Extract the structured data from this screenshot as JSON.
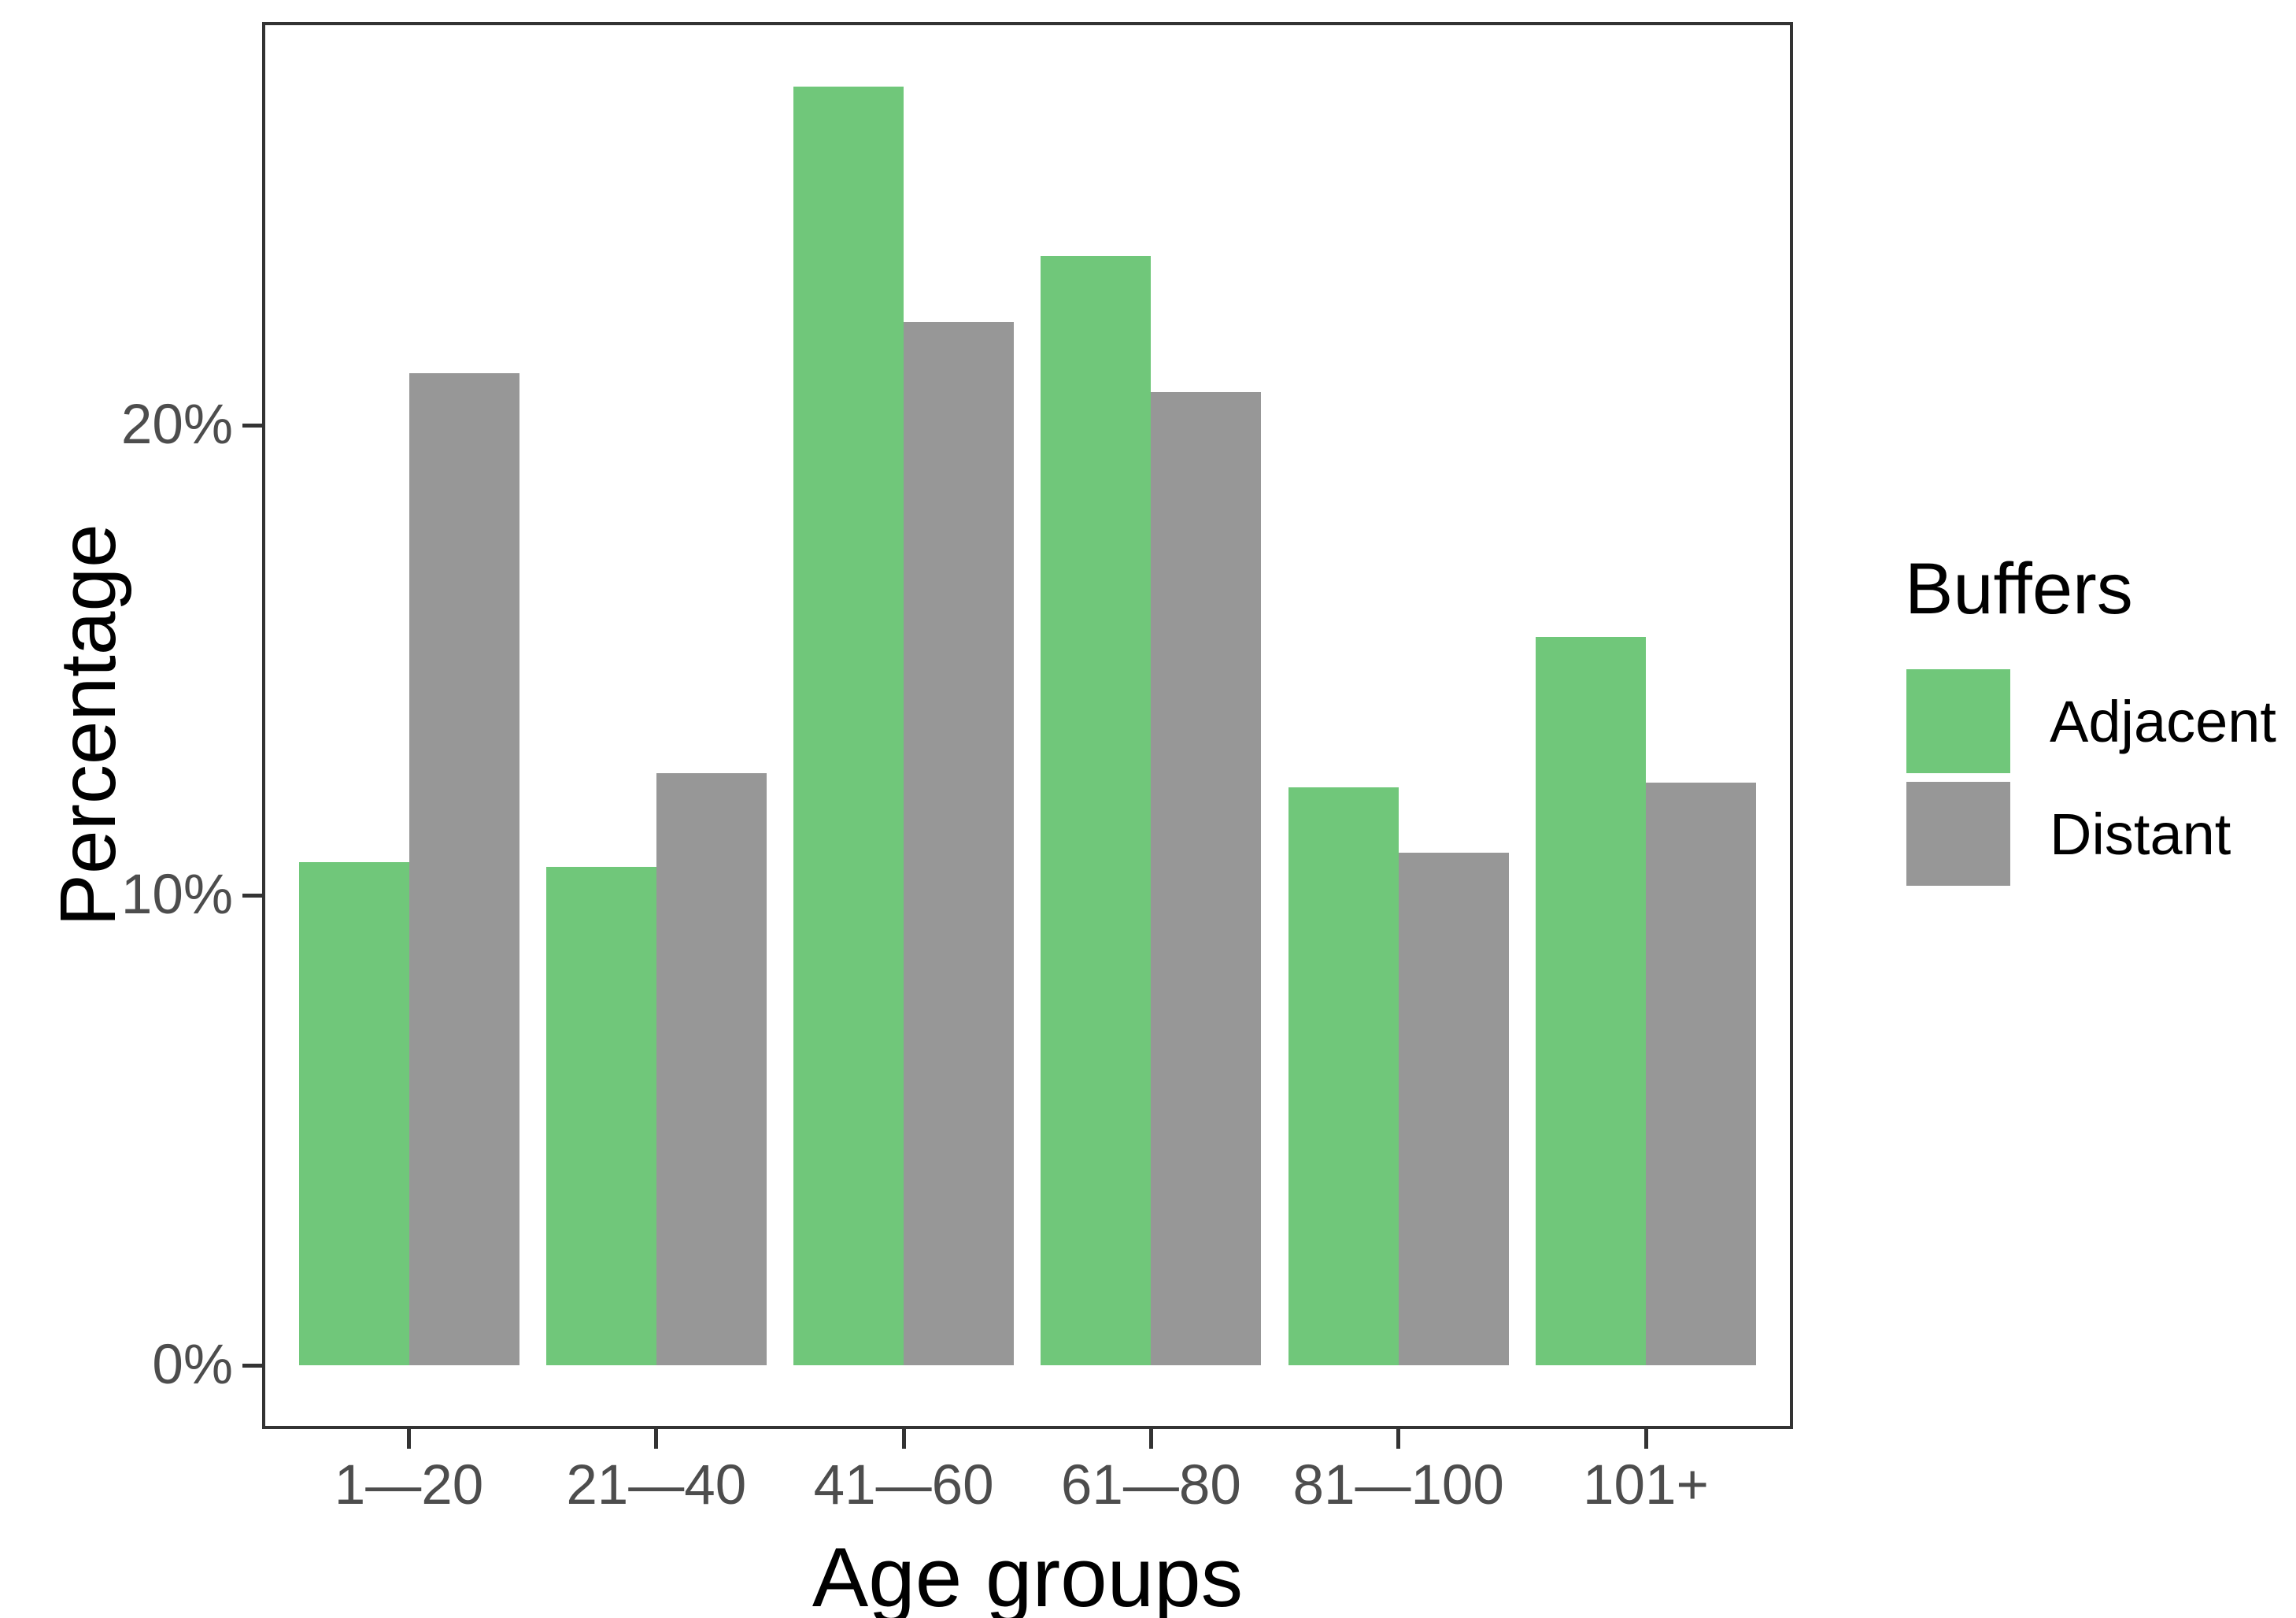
{
  "chart_data": {
    "type": "bar",
    "title": "",
    "categories": [
      "1—20",
      "21—40",
      "41—60",
      "61—80",
      "81—100",
      "101+"
    ],
    "series": [
      {
        "name": "Adjacent",
        "color": "#70C77A",
        "values": [
          10.7,
          10.6,
          27.2,
          23.6,
          12.3,
          15.5
        ]
      },
      {
        "name": "Distant",
        "color": "#979797",
        "values": [
          21.1,
          12.6,
          22.2,
          20.7,
          10.9,
          12.4
        ]
      }
    ],
    "xlabel": "Age groups",
    "ylabel": "Percentage",
    "y_ticks": [
      {
        "value": 0,
        "label": "0%"
      },
      {
        "value": 10,
        "label": "10%"
      },
      {
        "value": 20,
        "label": "20%"
      }
    ],
    "ylim": [
      0,
      28.6
    ],
    "grid": false,
    "legend": {
      "title": "Buffers",
      "position": "right",
      "entries": [
        "Adjacent",
        "Distant"
      ]
    }
  }
}
